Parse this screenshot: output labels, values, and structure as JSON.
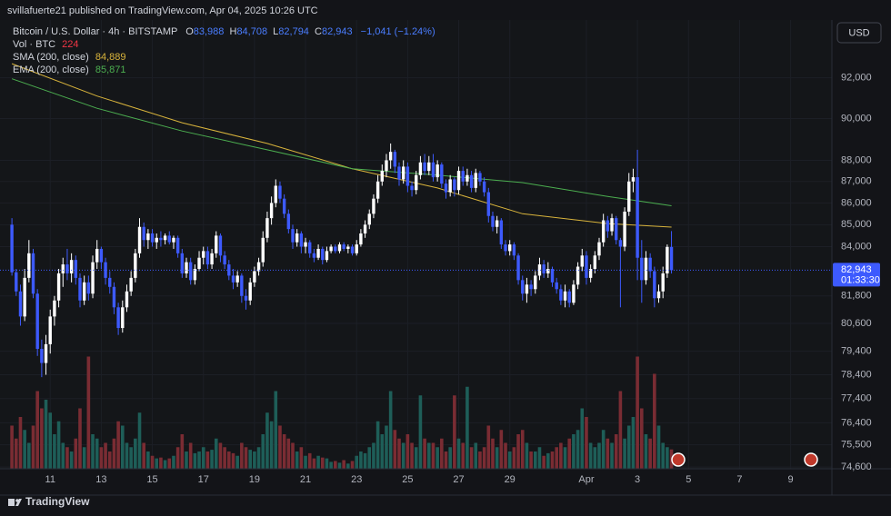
{
  "header": {
    "published": "svillafuerte21 published on TradingView.com, Apr 04, 2025 10:26 UTC"
  },
  "footer": {
    "brand": "TradingView"
  },
  "chart_data": {
    "type": "candlestick",
    "currency": "USD",
    "legend": {
      "symbol": "Bitcoin / U.S. Dollar · 4h · BITSTAMP",
      "ohlc": [
        {
          "key": "O",
          "value": "83,988"
        },
        {
          "key": "H",
          "value": "84,708"
        },
        {
          "key": "L",
          "value": "82,794"
        },
        {
          "key": "C",
          "value": "82,943"
        }
      ],
      "change": "−1,041 (−1.24%)",
      "volume": {
        "label": "Vol · BTC",
        "value": "224"
      }
    },
    "log_scale": true,
    "grid": true,
    "up_color": "#ffffff",
    "down_color": "#3d5afe",
    "volume_up_color": "#1e5e58",
    "volume_down_color": "#7a2c33",
    "ylim": [
      74530,
      95000
    ],
    "yticks": [
      {
        "value": 92000,
        "label": "92,000"
      },
      {
        "value": 90000,
        "label": "90,000"
      },
      {
        "value": 88000,
        "label": "88,000"
      },
      {
        "value": 87000,
        "label": "87,000"
      },
      {
        "value": 86000,
        "label": "86,000"
      },
      {
        "value": 85000,
        "label": "85,000"
      },
      {
        "value": 84000,
        "label": "84,000"
      },
      {
        "value": 81800,
        "label": "81,800"
      },
      {
        "value": 80600,
        "label": "80,600"
      },
      {
        "value": 79400,
        "label": "79,400"
      },
      {
        "value": 78400,
        "label": "78,400"
      },
      {
        "value": 77400,
        "label": "77,400"
      },
      {
        "value": 76400,
        "label": "76,400"
      },
      {
        "value": 75500,
        "label": "75,500"
      },
      {
        "value": 74600,
        "label": "74,600"
      }
    ],
    "xlim": [
      -2.8,
      192.7
    ],
    "xticks": [
      {
        "value": 9,
        "label": "11"
      },
      {
        "value": 21,
        "label": "13"
      },
      {
        "value": 33,
        "label": "15"
      },
      {
        "value": 45,
        "label": "17"
      },
      {
        "value": 57,
        "label": "19"
      },
      {
        "value": 69,
        "label": "21"
      },
      {
        "value": 81,
        "label": "23"
      },
      {
        "value": 93,
        "label": "25"
      },
      {
        "value": 105,
        "label": "27"
      },
      {
        "value": 117,
        "label": "29"
      },
      {
        "value": 135,
        "label": "Apr"
      },
      {
        "value": 147,
        "label": "3"
      },
      {
        "value": 159,
        "label": "5"
      },
      {
        "value": 171,
        "label": "7"
      },
      {
        "value": 183,
        "label": "9"
      }
    ],
    "vlim": [
      0,
      2000
    ],
    "last_price": {
      "value": 82943,
      "label": "82,943"
    },
    "countdown": "01:33:30",
    "candles": {
      "open": [
        85000,
        82850,
        82000,
        80900,
        82600,
        83700,
        81900,
        79500,
        78900,
        79700,
        80900,
        81600,
        82800,
        83200,
        82800,
        83400,
        82600,
        81600,
        82400,
        81900,
        83300,
        83900,
        83300,
        82600,
        82200,
        81300,
        80400,
        81300,
        82000,
        82600,
        83700,
        84900,
        84300,
        84600,
        84200,
        84400,
        84300,
        84500,
        84200,
        84400,
        83700,
        82800,
        83300,
        82500,
        83000,
        83500,
        83800,
        83200,
        83700,
        84500,
        83600,
        83200,
        82700,
        82400,
        82700,
        81800,
        81600,
        82400,
        82900,
        83300,
        84400,
        85300,
        86000,
        86800,
        86200,
        85500,
        84800,
        84200,
        84600,
        84000,
        84200,
        83700,
        83500,
        83900,
        83400,
        83800,
        84000,
        83800,
        84100,
        83900,
        84000,
        83700,
        84100,
        84600,
        85000,
        85500,
        86200,
        87000,
        87500,
        88000,
        88400,
        87700,
        87100,
        87700,
        86800,
        86600,
        87300,
        87900,
        87500,
        87900,
        87200,
        87800,
        86900,
        86500,
        87100,
        86600,
        87500,
        87000,
        87300,
        86700,
        87400,
        87000,
        86500,
        85400,
        84900,
        85200,
        84100,
        83800,
        84100,
        83600,
        82500,
        81900,
        82300,
        82100,
        82700,
        83200,
        82800,
        83000,
        82400,
        82100,
        81600,
        82000,
        81500,
        82300,
        83100,
        83600,
        82600,
        83000,
        83600,
        84200,
        85200,
        84700,
        85300,
        84300,
        84000,
        85600,
        87000,
        87200,
        83500,
        82500,
        83500,
        82900,
        81700,
        82000,
        82800,
        83988
      ],
      "high": [
        85300,
        83000,
        82300,
        83000,
        84300,
        83900,
        82100,
        79900,
        80100,
        81200,
        81800,
        83000,
        83500,
        83900,
        83700,
        83600,
        82800,
        82700,
        82700,
        83600,
        84300,
        84000,
        83500,
        82900,
        82400,
        81500,
        81600,
        82300,
        82900,
        83900,
        85300,
        85100,
        84800,
        84800,
        84600,
        84700,
        84600,
        84700,
        84500,
        84500,
        83900,
        83500,
        83500,
        83200,
        83800,
        84000,
        84000,
        83900,
        84700,
        84600,
        83800,
        83400,
        83000,
        82900,
        82800,
        82100,
        82600,
        83100,
        83500,
        84700,
        85600,
        86300,
        87100,
        87000,
        86400,
        85700,
        85000,
        84800,
        84700,
        84400,
        84300,
        83900,
        84100,
        84000,
        84000,
        84100,
        84100,
        84200,
        84200,
        84100,
        84100,
        84300,
        84800,
        85200,
        85700,
        86400,
        87300,
        87800,
        88300,
        88800,
        88500,
        87900,
        88000,
        87900,
        87000,
        87500,
        88200,
        88300,
        88200,
        88300,
        88000,
        87900,
        87100,
        87300,
        87200,
        87700,
        87700,
        87600,
        87500,
        87600,
        87500,
        87200,
        86700,
        85600,
        85400,
        85300,
        84300,
        84300,
        84200,
        83700,
        82700,
        82600,
        82500,
        82900,
        83500,
        83400,
        83300,
        83100,
        82600,
        82300,
        82300,
        82100,
        82500,
        83300,
        83900,
        83800,
        83200,
        83800,
        84400,
        85500,
        85400,
        85500,
        85400,
        84400,
        85800,
        87400,
        87600,
        88500,
        84300,
        83800,
        83700,
        83100,
        82300,
        83100,
        84100,
        84708
      ],
      "low": [
        82700,
        81800,
        80500,
        80700,
        82400,
        81700,
        79200,
        78300,
        78400,
        79300,
        80500,
        81300,
        82200,
        82500,
        82400,
        82300,
        81300,
        81400,
        81600,
        81700,
        83000,
        83000,
        82300,
        81900,
        81000,
        80100,
        80200,
        81100,
        81800,
        82400,
        83500,
        84000,
        83900,
        84000,
        83900,
        84000,
        84100,
        84100,
        83900,
        83500,
        82600,
        82600,
        82300,
        82300,
        82900,
        83200,
        83000,
        83000,
        83500,
        83300,
        83000,
        82500,
        82100,
        82200,
        81500,
        81200,
        81400,
        82200,
        82700,
        83100,
        84200,
        85000,
        85800,
        86000,
        85300,
        84600,
        83900,
        84000,
        83700,
        83700,
        83500,
        83300,
        83400,
        83200,
        83300,
        83700,
        83700,
        83700,
        83800,
        83700,
        83600,
        83600,
        84000,
        84400,
        84800,
        85300,
        86000,
        86800,
        87200,
        87600,
        87400,
        86800,
        86900,
        86500,
        86300,
        86400,
        87100,
        87300,
        87300,
        87000,
        87000,
        86700,
        86200,
        86300,
        86300,
        86400,
        86800,
        86800,
        86500,
        86500,
        86800,
        86300,
        85100,
        84700,
        84600,
        83900,
        83600,
        83600,
        83400,
        82300,
        81600,
        81500,
        81800,
        81900,
        82500,
        82600,
        82600,
        82200,
        81900,
        81400,
        81300,
        81300,
        81400,
        82100,
        82900,
        82300,
        82400,
        82800,
        83400,
        84000,
        84400,
        84500,
        84100,
        81300,
        83800,
        85400,
        86500,
        82500,
        81500,
        82300,
        82600,
        81300,
        81500,
        81700,
        82600,
        82794
      ],
      "close": [
        82850,
        82000,
        80900,
        82600,
        83700,
        81900,
        79500,
        78900,
        79700,
        80900,
        81600,
        82800,
        83200,
        82800,
        83400,
        82600,
        81600,
        82400,
        81900,
        83300,
        83900,
        83300,
        82600,
        82200,
        81300,
        80400,
        81300,
        82000,
        82600,
        83700,
        84900,
        84300,
        84600,
        84200,
        84400,
        84300,
        84500,
        84200,
        84400,
        83700,
        82800,
        83300,
        82500,
        83000,
        83500,
        83800,
        83200,
        83700,
        84500,
        83600,
        83200,
        82700,
        82400,
        82700,
        81800,
        81600,
        82400,
        82900,
        83300,
        84400,
        85300,
        86000,
        86800,
        86200,
        85500,
        84800,
        84200,
        84600,
        84000,
        84200,
        83700,
        83500,
        83900,
        83400,
        83800,
        84000,
        83800,
        84100,
        83900,
        84000,
        83700,
        84100,
        84600,
        85000,
        85500,
        86200,
        87000,
        87500,
        88000,
        88400,
        87700,
        87100,
        87700,
        86800,
        86600,
        87300,
        87900,
        87500,
        87900,
        87200,
        87800,
        86900,
        86500,
        87100,
        86600,
        87500,
        87000,
        87300,
        86700,
        87400,
        87000,
        86500,
        85400,
        84900,
        85200,
        84100,
        83800,
        84100,
        83600,
        82500,
        81900,
        82300,
        82100,
        82700,
        83200,
        82800,
        83000,
        82400,
        82100,
        81600,
        82000,
        81500,
        82300,
        83100,
        83600,
        82600,
        83000,
        83600,
        84200,
        85200,
        84700,
        85300,
        84300,
        84000,
        85600,
        87000,
        87200,
        83500,
        82500,
        83500,
        82900,
        81700,
        82000,
        82800,
        83988,
        82943
      ]
    },
    "volume": [
      500,
      350,
      600,
      450,
      300,
      500,
      900,
      700,
      800,
      650,
      400,
      550,
      300,
      250,
      200,
      350,
      700,
      250,
      1300,
      400,
      350,
      250,
      300,
      200,
      350,
      550,
      500,
      300,
      250,
      350,
      650,
      300,
      200,
      150,
      120,
      130,
      100,
      120,
      150,
      250,
      400,
      200,
      300,
      180,
      200,
      250,
      200,
      220,
      350,
      300,
      250,
      200,
      180,
      150,
      300,
      250,
      220,
      200,
      250,
      400,
      650,
      550,
      900,
      500,
      400,
      350,
      300,
      200,
      250,
      150,
      180,
      120,
      150,
      130,
      120,
      80,
      90,
      70,
      100,
      60,
      90,
      150,
      200,
      180,
      250,
      300,
      550,
      400,
      500,
      900,
      450,
      350,
      300,
      400,
      300,
      250,
      850,
      350,
      300,
      300,
      250,
      350,
      200,
      250,
      850,
      350,
      300,
      950,
      250,
      300,
      200,
      250,
      500,
      350,
      250,
      450,
      300,
      200,
      250,
      400,
      450,
      300,
      200,
      200,
      250,
      150,
      180,
      200,
      250,
      300,
      250,
      350,
      400,
      450,
      700,
      600,
      300,
      250,
      300,
      450,
      350,
      300,
      400,
      900,
      350,
      500,
      600,
      1300,
      700,
      400,
      350,
      1100,
      500,
      300,
      250,
      224
    ],
    "lines": [
      {
        "name": "SMA (200, close)",
        "value_label": "84,889",
        "color": "#d9b43c",
        "x": [
          0,
          20,
          40,
          60,
          80,
          100,
          120,
          140,
          155
        ],
        "values": [
          92700,
          91100,
          89800,
          88800,
          87600,
          86700,
          85500,
          85050,
          84889
        ]
      },
      {
        "name": "EMA (200, close)",
        "value_label": "85,871",
        "color": "#4caf50",
        "x": [
          0,
          20,
          40,
          60,
          80,
          100,
          120,
          140,
          155
        ],
        "values": [
          91950,
          90500,
          89400,
          88500,
          87600,
          87300,
          86950,
          86300,
          85871
        ]
      }
    ]
  }
}
